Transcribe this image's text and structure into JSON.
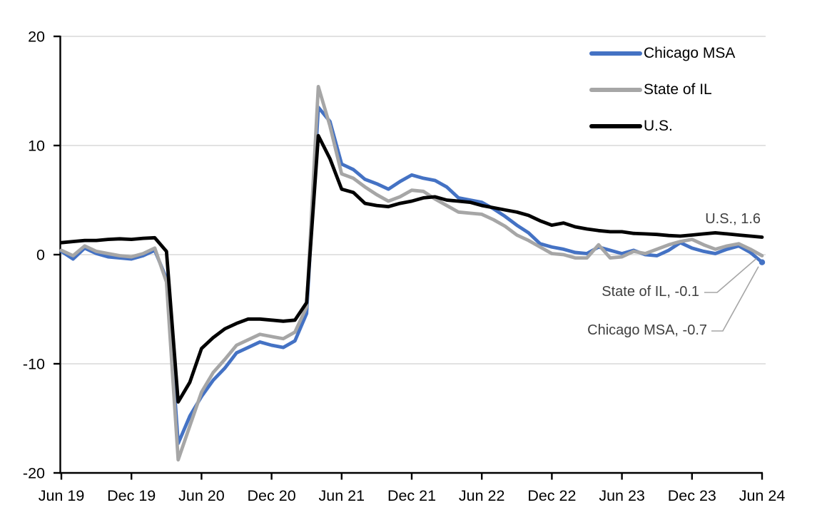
{
  "chart_data": {
    "type": "line",
    "title": "",
    "xlabel": "",
    "ylabel": "",
    "x_frequency": "monthly",
    "x_range": [
      "Jun 2019",
      "Jun 2024"
    ],
    "x_tick_labels": [
      "Jun 19",
      "Dec 19",
      "Jun 20",
      "Dec 20",
      "Jun 21",
      "Dec 21",
      "Jun 22",
      "Dec 22",
      "Jun 23",
      "Dec 23",
      "Jun 24"
    ],
    "x_tick_indices": [
      0,
      6,
      12,
      18,
      24,
      30,
      36,
      42,
      48,
      54,
      60
    ],
    "ylim": [
      -20,
      20
    ],
    "yticks": [
      20,
      10,
      0,
      -10,
      -20
    ],
    "grid": "horizontal",
    "gridline_color": "#D9D9D9",
    "axis_color": "#000000",
    "legend_position": "top-right",
    "annotation_text_color": "#404040",
    "leader_line_color": "#A6A6A6",
    "series": [
      {
        "name": "Chicago MSA",
        "color": "#4472C4",
        "end_marker": true,
        "values": [
          0.3,
          -0.4,
          0.6,
          0.1,
          -0.2,
          -0.3,
          -0.4,
          -0.1,
          0.4,
          -2.2,
          -17.3,
          -14.8,
          -13.0,
          -11.5,
          -10.4,
          -9.0,
          -8.5,
          -8.0,
          -8.3,
          -8.5,
          -7.9,
          -5.4,
          13.5,
          12.2,
          8.3,
          7.8,
          6.9,
          6.5,
          6.0,
          6.7,
          7.3,
          7.0,
          6.8,
          6.2,
          5.2,
          5.0,
          4.8,
          4.2,
          3.5,
          2.7,
          2.0,
          1.0,
          0.7,
          0.5,
          0.2,
          0.1,
          0.7,
          0.4,
          0.1,
          0.4,
          0.0,
          -0.1,
          0.4,
          1.1,
          0.6,
          0.3,
          0.1,
          0.5,
          0.8,
          0.2,
          -0.7
        ]
      },
      {
        "name": "State of IL",
        "color": "#A6A6A6",
        "end_marker": false,
        "values": [
          0.4,
          -0.1,
          0.8,
          0.3,
          0.1,
          -0.1,
          -0.2,
          0.1,
          0.6,
          -2.5,
          -18.8,
          -15.7,
          -12.6,
          -10.8,
          -9.6,
          -8.3,
          -7.8,
          -7.3,
          -7.5,
          -7.7,
          -7.1,
          -4.8,
          15.4,
          11.8,
          7.4,
          7.0,
          6.2,
          5.5,
          4.9,
          5.3,
          5.9,
          5.8,
          5.1,
          4.5,
          3.9,
          3.8,
          3.7,
          3.2,
          2.6,
          1.8,
          1.3,
          0.7,
          0.1,
          0.0,
          -0.3,
          -0.3,
          0.9,
          -0.3,
          -0.2,
          0.3,
          0.1,
          0.5,
          0.9,
          1.2,
          1.4,
          0.9,
          0.5,
          0.8,
          1.0,
          0.5,
          -0.1
        ]
      },
      {
        "name": "U.S.",
        "color": "#000000",
        "end_marker": false,
        "values": [
          1.1,
          1.2,
          1.3,
          1.3,
          1.4,
          1.45,
          1.4,
          1.5,
          1.55,
          0.3,
          -13.5,
          -11.7,
          -8.6,
          -7.6,
          -6.8,
          -6.3,
          -5.9,
          -5.9,
          -6.0,
          -6.1,
          -6.0,
          -4.4,
          10.9,
          8.8,
          6.0,
          5.7,
          4.7,
          4.5,
          4.4,
          4.7,
          4.9,
          5.2,
          5.3,
          5.0,
          4.9,
          4.8,
          4.5,
          4.3,
          4.1,
          3.9,
          3.6,
          3.1,
          2.7,
          2.9,
          2.55,
          2.35,
          2.2,
          2.1,
          2.1,
          1.95,
          1.9,
          1.85,
          1.75,
          1.7,
          1.8,
          1.9,
          2.0,
          1.9,
          1.8,
          1.7,
          1.6
        ]
      }
    ],
    "annotations": [
      {
        "series": "U.S.",
        "text": "U.S., 1.6",
        "value": 1.6,
        "has_leader": false
      },
      {
        "series": "State of IL",
        "text": "State of IL, -0.1",
        "value": -0.1,
        "has_leader": true
      },
      {
        "series": "Chicago MSA",
        "text": "Chicago MSA, -0.7",
        "value": -0.7,
        "has_leader": true
      }
    ]
  },
  "legend": {
    "items": [
      {
        "label": "Chicago MSA",
        "color": "#4472C4"
      },
      {
        "label": "State of IL",
        "color": "#A6A6A6"
      },
      {
        "label": "U.S.",
        "color": "#000000"
      }
    ]
  }
}
